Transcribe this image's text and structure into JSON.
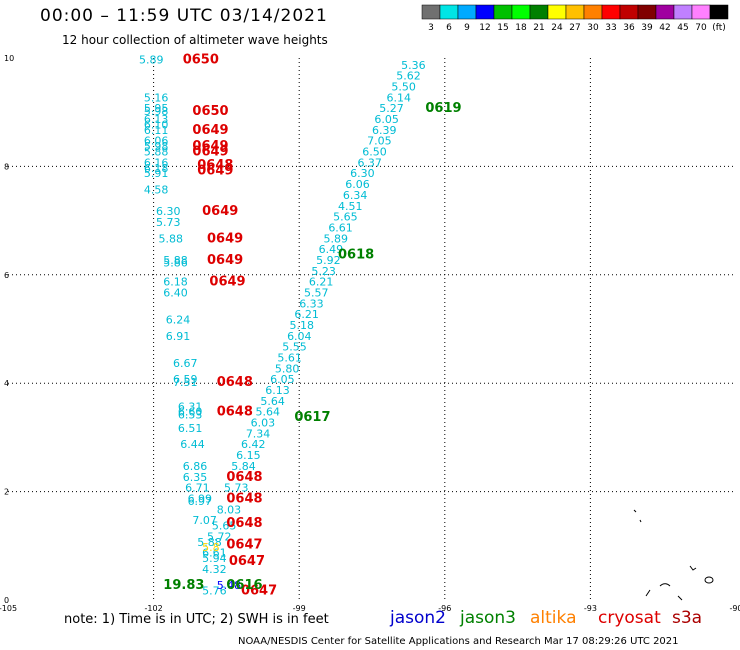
{
  "title": "00:00 – 11:59 UTC 03/14/2021",
  "subtitle": "12 hour collection of altimeter wave heights",
  "note": "note: 1) Time is in UTC; 2) SWH is in feet",
  "credit": "NOAA/NESDIS Center for Satellite Applications and Research    Mar 17 08:29:26 UTC 2021",
  "color_scale": {
    "labels": [
      "3",
      "6",
      "9",
      "12",
      "15",
      "18",
      "21",
      "24",
      "27",
      "30",
      "33",
      "36",
      "39",
      "42",
      "45",
      "70",
      "(ft)"
    ],
    "colors": [
      "#707070",
      "#00e5e5",
      "#00aaff",
      "#0000ff",
      "#00c000",
      "#00ff00",
      "#008000",
      "#ffff00",
      "#ffc000",
      "#ff8000",
      "#ff0000",
      "#c00000",
      "#800000",
      "#a000a0",
      "#c080ff",
      "#ff80ff",
      "#000000"
    ]
  },
  "satellites": [
    {
      "name": "jason2",
      "color": "#0000cc"
    },
    {
      "name": "jason3",
      "color": "#008000"
    },
    {
      "name": "altika",
      "color": "#ff8000"
    },
    {
      "name": "cryosat",
      "color": "#dd0000"
    },
    {
      "name": "s3a",
      "color": "#aa0000"
    }
  ],
  "chart_data": {
    "type": "scatter",
    "xlim": [
      -105,
      -90
    ],
    "ylim": [
      0,
      10
    ],
    "x_ticks": [
      "-105",
      "-102",
      "-99",
      "-96",
      "-93",
      "-90"
    ],
    "y_ticks": [
      "0",
      "2",
      "4",
      "6",
      "8",
      "10"
    ],
    "grid": true,
    "series": [
      {
        "name": "jason3 track",
        "color": "#00bcd4",
        "points": [
          [
            -96.9,
            9.8,
            "5.36"
          ],
          [
            -97.0,
            9.6,
            "5.62"
          ],
          [
            -97.1,
            9.4,
            "5.50"
          ],
          [
            -97.2,
            9.2,
            "6.14"
          ],
          [
            -97.35,
            9.0,
            "5.27"
          ],
          [
            -97.45,
            8.8,
            "6.05"
          ],
          [
            -97.5,
            8.6,
            "6.39"
          ],
          [
            -97.6,
            8.4,
            "7.05"
          ],
          [
            -97.7,
            8.2,
            "6.50"
          ],
          [
            -97.8,
            8.0,
            "6.37"
          ],
          [
            -97.95,
            7.8,
            "6.30"
          ],
          [
            -98.05,
            7.6,
            "6.06"
          ],
          [
            -98.1,
            7.4,
            "6.34"
          ],
          [
            -98.2,
            7.2,
            "4.51"
          ],
          [
            -98.3,
            7.0,
            "5.65"
          ],
          [
            -98.4,
            6.8,
            "6.61"
          ],
          [
            -98.5,
            6.6,
            "5.89"
          ],
          [
            -98.6,
            6.4,
            "6.49"
          ],
          [
            -98.65,
            6.2,
            "5.92"
          ],
          [
            -98.75,
            6.0,
            "5.23"
          ],
          [
            -98.8,
            5.8,
            "6.21"
          ],
          [
            -98.9,
            5.6,
            "5.57"
          ],
          [
            -99.0,
            5.4,
            "6.33"
          ],
          [
            -99.1,
            5.2,
            "6.21"
          ],
          [
            -99.2,
            5.0,
            "5.18"
          ],
          [
            -99.25,
            4.8,
            "6.04"
          ],
          [
            -99.35,
            4.6,
            "5.55"
          ],
          [
            -99.45,
            4.4,
            "5.61"
          ],
          [
            -99.5,
            4.2,
            "5.80"
          ],
          [
            -99.6,
            4.0,
            "6.05"
          ],
          [
            -99.7,
            3.8,
            "6.13"
          ],
          [
            -99.8,
            3.6,
            "5.64"
          ],
          [
            -99.9,
            3.4,
            "5.64"
          ],
          [
            -100.0,
            3.2,
            "6.03"
          ],
          [
            -100.1,
            3.0,
            "7.34"
          ],
          [
            -100.2,
            2.8,
            "6.42"
          ],
          [
            -100.3,
            2.6,
            "6.15"
          ],
          [
            -100.4,
            2.4,
            "5.84"
          ],
          [
            -100.55,
            2.0,
            "5.73"
          ],
          [
            -100.7,
            1.6,
            "8.03"
          ],
          [
            -100.8,
            1.3,
            "5.65"
          ],
          [
            -100.9,
            1.1,
            "5.72"
          ]
        ]
      },
      {
        "name": "cryosat track",
        "color": "#00bcd4",
        "points": [
          [
            -102.3,
            9.9,
            "5.89"
          ],
          [
            -102.2,
            9.2,
            "5.16"
          ],
          [
            -102.2,
            9.0,
            "5.95"
          ],
          [
            -102.2,
            8.95,
            "5.98"
          ],
          [
            -102.2,
            8.8,
            "6.13"
          ],
          [
            -102.2,
            8.7,
            "6.10"
          ],
          [
            -102.2,
            8.6,
            "6.11"
          ],
          [
            -102.2,
            8.4,
            "6.06"
          ],
          [
            -102.2,
            8.3,
            "5.98"
          ],
          [
            -102.2,
            8.2,
            "5.88"
          ],
          [
            -102.2,
            8.0,
            "6.16"
          ],
          [
            -102.2,
            7.9,
            "6.18"
          ],
          [
            -102.2,
            7.8,
            "5.91"
          ],
          [
            -102.2,
            7.5,
            "4.58"
          ],
          [
            -101.95,
            7.1,
            "6.30"
          ],
          [
            -101.95,
            6.9,
            "5.73"
          ],
          [
            -101.9,
            6.6,
            "5.88"
          ],
          [
            -101.8,
            6.2,
            "5.88"
          ],
          [
            -101.8,
            6.15,
            "5.86"
          ],
          [
            -101.8,
            5.8,
            "6.18"
          ],
          [
            -101.8,
            5.6,
            "6.40"
          ],
          [
            -101.75,
            5.1,
            "6.24"
          ],
          [
            -101.75,
            4.8,
            "6.91"
          ],
          [
            -101.6,
            4.3,
            "6.67"
          ],
          [
            -101.6,
            4.0,
            "6.59"
          ],
          [
            -101.6,
            3.95,
            "7.51"
          ],
          [
            -101.5,
            3.5,
            "6.31"
          ],
          [
            -101.5,
            3.4,
            "6.60"
          ],
          [
            -101.5,
            3.35,
            "6.53"
          ],
          [
            -101.5,
            3.1,
            "6.51"
          ],
          [
            -101.45,
            2.8,
            "6.44"
          ],
          [
            -101.4,
            2.4,
            "6.86"
          ],
          [
            -101.4,
            2.2,
            "6.35"
          ],
          [
            -101.35,
            2.0,
            "6.71"
          ],
          [
            -101.3,
            1.8,
            "6.99"
          ],
          [
            -101.3,
            1.75,
            "6.97"
          ],
          [
            -101.2,
            1.4,
            "7.07"
          ],
          [
            -101.1,
            1.0,
            "5.88"
          ],
          [
            -101.0,
            0.8,
            "6.61"
          ],
          [
            -101.0,
            0.7,
            "5.94"
          ],
          [
            -101.0,
            0.5,
            "4.32"
          ],
          [
            -101.0,
            0.1,
            "5.76"
          ]
        ]
      },
      {
        "name": "altika track",
        "color": "#ffd700",
        "points": [
          [
            -101.0,
            0.9,
            "5.8"
          ]
        ]
      },
      {
        "name": "jason2 track",
        "color": "#0000ff",
        "points": [
          [
            -100.7,
            0.2,
            "5.48"
          ]
        ]
      }
    ],
    "time_labels": [
      {
        "text": "0650",
        "lon": -101.4,
        "lat": 9.9,
        "color": "#dd0000"
      },
      {
        "text": "0650",
        "lon": -101.2,
        "lat": 8.95,
        "color": "#dd0000"
      },
      {
        "text": "0649",
        "lon": -101.2,
        "lat": 8.6,
        "color": "#dd0000"
      },
      {
        "text": "0649",
        "lon": -101.2,
        "lat": 8.3,
        "color": "#dd0000"
      },
      {
        "text": "0649",
        "lon": -101.2,
        "lat": 8.2,
        "color": "#dd0000"
      },
      {
        "text": "0648",
        "lon": -101.1,
        "lat": 7.95,
        "color": "#dd0000"
      },
      {
        "text": "0649",
        "lon": -101.1,
        "lat": 7.85,
        "color": "#dd0000"
      },
      {
        "text": "0649",
        "lon": -101.0,
        "lat": 7.1,
        "color": "#dd0000"
      },
      {
        "text": "0649",
        "lon": -100.9,
        "lat": 6.6,
        "color": "#dd0000"
      },
      {
        "text": "0649",
        "lon": -100.9,
        "lat": 6.2,
        "color": "#dd0000"
      },
      {
        "text": "0649",
        "lon": -100.85,
        "lat": 5.8,
        "color": "#dd0000"
      },
      {
        "text": "0648",
        "lon": -100.7,
        "lat": 3.95,
        "color": "#dd0000"
      },
      {
        "text": "0648",
        "lon": -100.7,
        "lat": 3.4,
        "color": "#dd0000"
      },
      {
        "text": "0648",
        "lon": -100.5,
        "lat": 2.2,
        "color": "#dd0000"
      },
      {
        "text": "0648",
        "lon": -100.5,
        "lat": 1.8,
        "color": "#dd0000"
      },
      {
        "text": "0648",
        "lon": -100.5,
        "lat": 1.35,
        "color": "#dd0000"
      },
      {
        "text": "0647",
        "lon": -100.5,
        "lat": 0.95,
        "color": "#dd0000"
      },
      {
        "text": "0647",
        "lon": -100.45,
        "lat": 0.65,
        "color": "#dd0000"
      },
      {
        "text": "0647",
        "lon": -100.2,
        "lat": 0.1,
        "color": "#dd0000"
      },
      {
        "text": "0616",
        "lon": -100.5,
        "lat": 0.2,
        "color": "#008000"
      },
      {
        "text": "0619",
        "lon": -96.4,
        "lat": 9.0,
        "color": "#008000"
      },
      {
        "text": "0618",
        "lon": -98.2,
        "lat": 6.3,
        "color": "#008000"
      },
      {
        "text": "0617",
        "lon": -99.1,
        "lat": 3.3,
        "color": "#008000"
      },
      {
        "text": "19.83",
        "lon": -101.8,
        "lat": 0.2,
        "color": "#008000"
      }
    ]
  }
}
